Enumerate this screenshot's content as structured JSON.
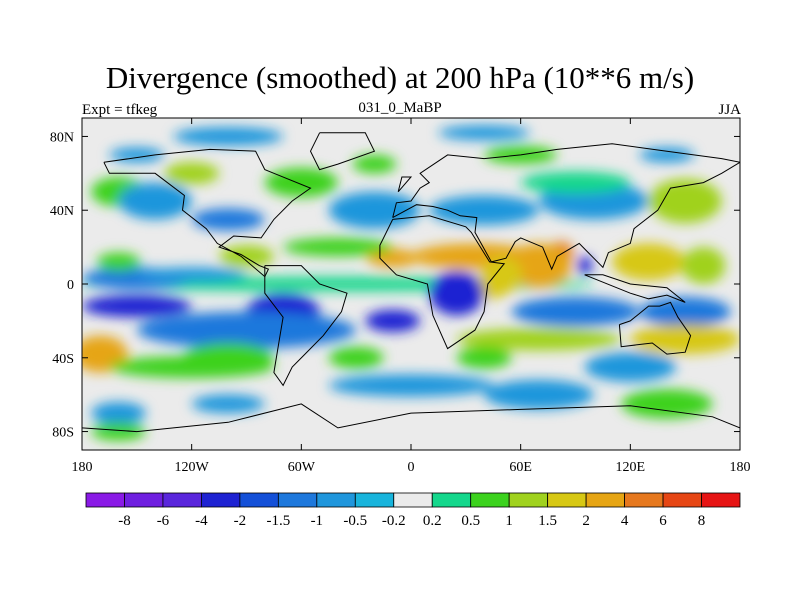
{
  "chart_data": {
    "type": "heatmap",
    "title": "Divergence (smoothed) at 200 hPa (10**6 m/s)",
    "left_label": "Expt = tfkeg",
    "center_label": "031_0_MaBP",
    "right_label": "JJA",
    "xlim": [
      -180,
      180
    ],
    "ylim": [
      -90,
      90
    ],
    "x_ticks": [
      {
        "value": -180,
        "label": "180"
      },
      {
        "value": -120,
        "label": "120W"
      },
      {
        "value": -60,
        "label": "60W"
      },
      {
        "value": 0,
        "label": "0"
      },
      {
        "value": 60,
        "label": "60E"
      },
      {
        "value": 120,
        "label": "120E"
      },
      {
        "value": 180,
        "label": "180"
      }
    ],
    "y_ticks": [
      {
        "value": 80,
        "label": "80N"
      },
      {
        "value": 40,
        "label": "40N"
      },
      {
        "value": 0,
        "label": "0"
      },
      {
        "value": -40,
        "label": "40S"
      },
      {
        "value": -80,
        "label": "80S"
      }
    ],
    "colorbar": {
      "colors": [
        "#8a1ae6",
        "#6f1fe0",
        "#5a26dc",
        "#1e22d2",
        "#1450d8",
        "#1e78dc",
        "#1f96dc",
        "#18b4dc",
        "#ebebeb",
        "#14d78c",
        "#3cd21e",
        "#a0d21e",
        "#d7c814",
        "#e6a514",
        "#e6781e",
        "#e64614",
        "#e61414"
      ],
      "labels": [
        "-8",
        "-6",
        "-4",
        "-2",
        "-1.5",
        "-1",
        "-0.5",
        "-0.2",
        "0.2",
        "0.5",
        "1",
        "1.5",
        "2",
        "4",
        "6",
        "8"
      ]
    },
    "features": [
      {
        "lon": -40,
        "lat": 0,
        "w": 280,
        "h": 4,
        "value": 0.3
      },
      {
        "lon": -150,
        "lat": 3,
        "w": 60,
        "h": 6,
        "value": -1.2
      },
      {
        "lon": -120,
        "lat": 5,
        "w": 60,
        "h": 4,
        "value": -0.5
      },
      {
        "lon": 35,
        "lat": 15,
        "w": 70,
        "h": 7,
        "value": 3
      },
      {
        "lon": -10,
        "lat": 14,
        "w": 28,
        "h": 5,
        "value": 3.5
      },
      {
        "lon": 82,
        "lat": 17,
        "w": 14,
        "h": 6,
        "value": 6
      },
      {
        "lon": 70,
        "lat": 10,
        "w": 36,
        "h": 12,
        "value": 2.5
      },
      {
        "lon": 50,
        "lat": 5,
        "w": 22,
        "h": 10,
        "value": 1.8
      },
      {
        "lon": 130,
        "lat": 12,
        "w": 40,
        "h": 10,
        "value": 1.8
      },
      {
        "lon": 160,
        "lat": 10,
        "w": 24,
        "h": 10,
        "value": 1.2
      },
      {
        "lon": -90,
        "lat": 15,
        "w": 30,
        "h": 6,
        "value": 1.2
      },
      {
        "lon": -160,
        "lat": 12,
        "w": 24,
        "h": 5,
        "value": 1
      },
      {
        "lon": -40,
        "lat": 20,
        "w": 60,
        "h": 5,
        "value": 0.8
      },
      {
        "lon": 95,
        "lat": 10,
        "w": 8,
        "h": 5,
        "value": -2
      },
      {
        "lon": 40,
        "lat": -2,
        "w": 30,
        "h": 6,
        "value": 1.6
      },
      {
        "lon": -150,
        "lat": -12,
        "w": 60,
        "h": 6,
        "value": -2.5
      },
      {
        "lon": -70,
        "lat": -15,
        "w": 40,
        "h": 10,
        "value": -2.5
      },
      {
        "lon": -10,
        "lat": -20,
        "w": 30,
        "h": 6,
        "value": -2.5
      },
      {
        "lon": 25,
        "lat": -5,
        "w": 30,
        "h": 12,
        "value": -3
      },
      {
        "lon": 90,
        "lat": -15,
        "w": 70,
        "h": 8,
        "value": -1.2
      },
      {
        "lon": 150,
        "lat": -15,
        "w": 50,
        "h": 8,
        "value": -1.2
      },
      {
        "lon": -90,
        "lat": -25,
        "w": 120,
        "h": 10,
        "value": -1.2
      },
      {
        "lon": -170,
        "lat": -38,
        "w": 30,
        "h": 10,
        "value": 3
      },
      {
        "lon": 70,
        "lat": -30,
        "w": 90,
        "h": 6,
        "value": 1.2
      },
      {
        "lon": 150,
        "lat": -30,
        "w": 60,
        "h": 8,
        "value": 1.8
      },
      {
        "lon": -100,
        "lat": -40,
        "w": 50,
        "h": 8,
        "value": 1
      },
      {
        "lon": -30,
        "lat": -40,
        "w": 30,
        "h": 6,
        "value": 0.8
      },
      {
        "lon": 40,
        "lat": -40,
        "w": 30,
        "h": 6,
        "value": 0.7
      },
      {
        "lon": -120,
        "lat": -45,
        "w": 90,
        "h": 6,
        "value": 0.6
      },
      {
        "lon": 120,
        "lat": -45,
        "w": 50,
        "h": 8,
        "value": -0.8
      },
      {
        "lon": 0,
        "lat": -55,
        "w": 90,
        "h": 6,
        "value": -0.8
      },
      {
        "lon": 70,
        "lat": -60,
        "w": 60,
        "h": 8,
        "value": -0.8
      },
      {
        "lon": 140,
        "lat": -65,
        "w": 50,
        "h": 8,
        "value": 0.7
      },
      {
        "lon": -160,
        "lat": -70,
        "w": 30,
        "h": 6,
        "value": -0.6
      },
      {
        "lon": -100,
        "lat": -65,
        "w": 40,
        "h": 5,
        "value": -0.6
      },
      {
        "lon": -160,
        "lat": -80,
        "w": 30,
        "h": 5,
        "value": 1
      },
      {
        "lon": -160,
        "lat": 50,
        "w": 30,
        "h": 8,
        "value": 0.7
      },
      {
        "lon": 150,
        "lat": 45,
        "w": 40,
        "h": 12,
        "value": 1.2
      },
      {
        "lon": -140,
        "lat": 45,
        "w": 40,
        "h": 10,
        "value": -0.7
      },
      {
        "lon": -20,
        "lat": 40,
        "w": 50,
        "h": 10,
        "value": -0.8
      },
      {
        "lon": 40,
        "lat": 40,
        "w": 60,
        "h": 8,
        "value": -0.7
      },
      {
        "lon": 100,
        "lat": 45,
        "w": 60,
        "h": 10,
        "value": -0.8
      },
      {
        "lon": -100,
        "lat": 35,
        "w": 40,
        "h": 6,
        "value": -1.2
      },
      {
        "lon": -60,
        "lat": 55,
        "w": 40,
        "h": 8,
        "value": 0.6
      },
      {
        "lon": 90,
        "lat": 55,
        "w": 60,
        "h": 6,
        "value": 0.5
      },
      {
        "lon": -120,
        "lat": 60,
        "w": 30,
        "h": 6,
        "value": 1.2
      },
      {
        "lon": -20,
        "lat": 65,
        "w": 24,
        "h": 5,
        "value": 0.8
      },
      {
        "lon": 60,
        "lat": 70,
        "w": 40,
        "h": 5,
        "value": 0.7
      },
      {
        "lon": -150,
        "lat": 70,
        "w": 30,
        "h": 4,
        "value": -0.5
      },
      {
        "lon": 140,
        "lat": 70,
        "w": 30,
        "h": 4,
        "value": -0.5
      },
      {
        "lon": -100,
        "lat": 80,
        "w": 60,
        "h": 5,
        "value": -0.5
      },
      {
        "lon": 40,
        "lat": 82,
        "w": 50,
        "h": 4,
        "value": -0.5
      }
    ],
    "continents": [
      [
        [
          -168,
          66
        ],
        [
          -140,
          70
        ],
        [
          -110,
          73
        ],
        [
          -85,
          72
        ],
        [
          -80,
          62
        ],
        [
          -75,
          60
        ],
        [
          -55,
          52
        ],
        [
          -65,
          45
        ],
        [
          -75,
          35
        ],
        [
          -82,
          25
        ],
        [
          -97,
          26
        ],
        [
          -105,
          20
        ],
        [
          -93,
          16
        ],
        [
          -83,
          10
        ],
        [
          -78,
          8
        ],
        [
          -80,
          4
        ],
        [
          -93,
          15
        ],
        [
          -106,
          22
        ],
        [
          -112,
          30
        ],
        [
          -125,
          40
        ],
        [
          -124,
          48
        ],
        [
          -140,
          60
        ],
        [
          -165,
          60
        ],
        [
          -168,
          66
        ]
      ],
      [
        [
          -80,
          10
        ],
        [
          -60,
          10
        ],
        [
          -50,
          0
        ],
        [
          -35,
          -5
        ],
        [
          -38,
          -15
        ],
        [
          -48,
          -28
        ],
        [
          -58,
          -38
        ],
        [
          -65,
          -45
        ],
        [
          -70,
          -55
        ],
        [
          -75,
          -48
        ],
        [
          -72,
          -30
        ],
        [
          -70,
          -18
        ],
        [
          -80,
          -5
        ],
        [
          -80,
          10
        ]
      ],
      [
        [
          -50,
          82
        ],
        [
          -25,
          82
        ],
        [
          -20,
          72
        ],
        [
          -40,
          65
        ],
        [
          -50,
          62
        ],
        [
          -55,
          72
        ],
        [
          -50,
          82
        ]
      ],
      [
        [
          -10,
          35
        ],
        [
          10,
          37
        ],
        [
          30,
          31
        ],
        [
          33,
          28
        ],
        [
          43,
          12
        ],
        [
          51,
          11
        ],
        [
          42,
          0
        ],
        [
          40,
          -15
        ],
        [
          35,
          -25
        ],
        [
          20,
          -35
        ],
        [
          12,
          -17
        ],
        [
          9,
          0
        ],
        [
          -8,
          5
        ],
        [
          -17,
          14
        ],
        [
          -17,
          21
        ],
        [
          -10,
          35
        ]
      ],
      [
        [
          -10,
          36
        ],
        [
          -8,
          44
        ],
        [
          0,
          45
        ],
        [
          5,
          52
        ],
        [
          10,
          55
        ],
        [
          5,
          60
        ],
        [
          20,
          70
        ],
        [
          40,
          68
        ],
        [
          60,
          70
        ],
        [
          80,
          73
        ],
        [
          110,
          76
        ],
        [
          140,
          72
        ],
        [
          170,
          68
        ],
        [
          180,
          66
        ],
        [
          170,
          60
        ],
        [
          160,
          55
        ],
        [
          142,
          52
        ],
        [
          135,
          40
        ],
        [
          122,
          30
        ],
        [
          120,
          22
        ],
        [
          108,
          17
        ],
        [
          105,
          9
        ],
        [
          100,
          14
        ],
        [
          97,
          17
        ],
        [
          92,
          22
        ],
        [
          80,
          15
        ],
        [
          77,
          8
        ],
        [
          72,
          20
        ],
        [
          60,
          25
        ],
        [
          57,
          23
        ],
        [
          52,
          14
        ],
        [
          44,
          12
        ],
        [
          35,
          28
        ],
        [
          36,
          36
        ],
        [
          27,
          37
        ],
        [
          20,
          40
        ],
        [
          12,
          42
        ],
        [
          3,
          43
        ],
        [
          -10,
          36
        ]
      ],
      [
        [
          114,
          -22
        ],
        [
          120,
          -20
        ],
        [
          130,
          -12
        ],
        [
          136,
          -12
        ],
        [
          142,
          -10
        ],
        [
          146,
          -18
        ],
        [
          153,
          -28
        ],
        [
          150,
          -37
        ],
        [
          140,
          -38
        ],
        [
          132,
          -32
        ],
        [
          115,
          -34
        ],
        [
          114,
          -22
        ]
      ],
      [
        [
          -180,
          -78
        ],
        [
          -150,
          -80
        ],
        [
          -100,
          -75
        ],
        [
          -60,
          -65
        ],
        [
          -40,
          -78
        ],
        [
          0,
          -70
        ],
        [
          60,
          -68
        ],
        [
          120,
          -66
        ],
        [
          165,
          -72
        ],
        [
          180,
          -78
        ]
      ],
      [
        [
          95,
          5
        ],
        [
          120,
          -5
        ],
        [
          130,
          -8
        ],
        [
          140,
          -6
        ],
        [
          150,
          -10
        ],
        [
          140,
          -2
        ],
        [
          120,
          0
        ],
        [
          105,
          5
        ],
        [
          95,
          5
        ]
      ],
      [
        [
          -7,
          50
        ],
        [
          0,
          58
        ],
        [
          -5,
          58
        ],
        [
          -7,
          50
        ]
      ]
    ]
  }
}
